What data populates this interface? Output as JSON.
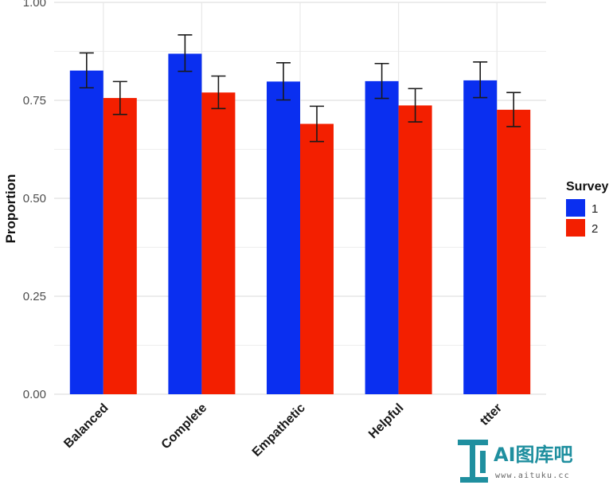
{
  "chart_data": {
    "type": "bar",
    "title": "",
    "xlabel": "",
    "ylabel": "Proportion",
    "ylim": [
      0,
      1
    ],
    "grid": true,
    "legend_position": "right",
    "legend_title": "Survey",
    "y_ticks": [
      "0.00",
      "0.25",
      "0.50",
      "0.75",
      "1.00"
    ],
    "categories": [
      "Balanced",
      "Complete",
      "Empathetic",
      "Helpful",
      "ttter"
    ],
    "series": [
      {
        "name": "1",
        "color": "#0a2ff0",
        "values": [
          0.826,
          0.869,
          0.798,
          0.799,
          0.801
        ],
        "error_low": [
          0.782,
          0.824,
          0.751,
          0.755,
          0.757
        ],
        "error_high": [
          0.871,
          0.917,
          0.846,
          0.844,
          0.848
        ]
      },
      {
        "name": "2",
        "color": "#f31f00",
        "values": [
          0.756,
          0.77,
          0.69,
          0.737,
          0.726
        ],
        "error_low": [
          0.714,
          0.729,
          0.645,
          0.695,
          0.683
        ],
        "error_high": [
          0.798,
          0.812,
          0.735,
          0.78,
          0.77
        ]
      }
    ]
  },
  "watermark": {
    "text": "AI图库吧",
    "url": "www.aituku.cc",
    "color": "#1f8f9f"
  }
}
